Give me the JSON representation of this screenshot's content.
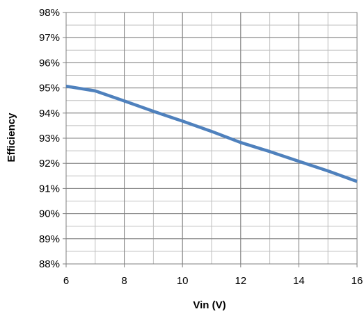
{
  "chart_data": {
    "type": "line",
    "title": "",
    "xlabel": "Vin (V)",
    "ylabel": "Efficiency",
    "xlim": [
      6,
      16
    ],
    "ylim": [
      88,
      98
    ],
    "x_ticks": [
      6,
      8,
      10,
      12,
      14,
      16
    ],
    "y_ticks": [
      88,
      89,
      90,
      91,
      92,
      93,
      94,
      95,
      96,
      97,
      98
    ],
    "y_tick_format": "percent",
    "x_minor_step": 1,
    "y_minor_step": 0.5,
    "grid": true,
    "legend": "none",
    "colors": {
      "line": "#4f81bd",
      "major_grid": "#7f7f7f",
      "minor_grid": "#bfbfbf",
      "axis": "#7f7f7f"
    },
    "series": [
      {
        "x": [
          6,
          7,
          8,
          9,
          10,
          11,
          12,
          13,
          14,
          15,
          16
        ],
        "values": [
          95.07,
          94.88,
          94.48,
          94.07,
          93.68,
          93.27,
          92.83,
          92.47,
          92.08,
          91.7,
          91.28
        ]
      }
    ]
  }
}
